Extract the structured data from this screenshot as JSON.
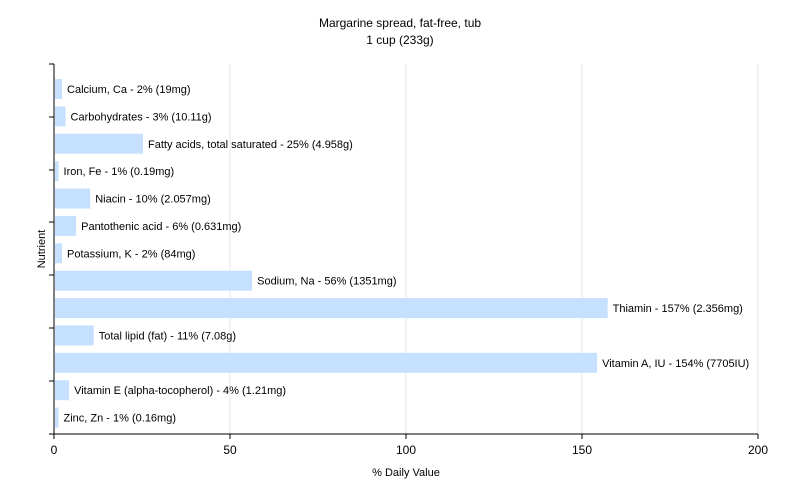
{
  "chart_data": {
    "type": "bar",
    "orientation": "horizontal",
    "title": "Margarine spread, fat-free, tub",
    "subtitle": "1 cup (233g)",
    "xlabel": "% Daily Value",
    "ylabel": "Nutrient",
    "xlim": [
      0,
      200
    ],
    "xticks": [
      0,
      50,
      100,
      150,
      200
    ],
    "grid": true,
    "bar_color": "#c6e0ff",
    "categories": [
      "Calcium, Ca",
      "Carbohydrates",
      "Fatty acids, total saturated",
      "Iron, Fe",
      "Niacin",
      "Pantothenic acid",
      "Potassium, K",
      "Sodium, Na",
      "Thiamin",
      "Total lipid (fat)",
      "Vitamin A, IU",
      "Vitamin E (alpha-tocopherol)",
      "Zinc, Zn"
    ],
    "values": [
      2,
      3,
      25,
      1,
      10,
      6,
      2,
      56,
      157,
      11,
      154,
      4,
      1
    ],
    "data_labels": [
      "Calcium, Ca - 2% (19mg)",
      "Carbohydrates - 3% (10.11g)",
      "Fatty acids, total saturated - 25% (4.958g)",
      "Iron, Fe - 1% (0.19mg)",
      "Niacin - 10% (2.057mg)",
      "Pantothenic acid - 6% (0.631mg)",
      "Potassium, K - 2% (84mg)",
      "Sodium, Na - 56% (1351mg)",
      "Thiamin - 157% (2.356mg)",
      "Total lipid (fat) - 11% (7.08g)",
      "Vitamin A, IU - 154% (7705IU)",
      "Vitamin E (alpha-tocopherol) - 4% (1.21mg)",
      "Zinc, Zn - 1% (0.16mg)"
    ]
  }
}
